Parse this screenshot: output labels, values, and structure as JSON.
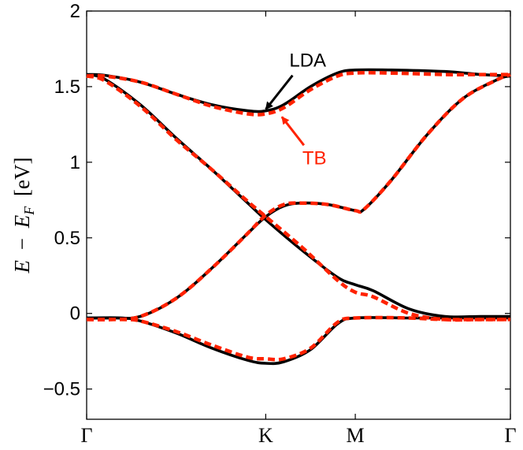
{
  "chart_data": {
    "type": "line",
    "ylabel": "E − E_F [eV]",
    "ylabel_parts": {
      "e": "E",
      "minus": "−",
      "ef": "E",
      "ef_sub": "F",
      "unit": "[eV]"
    },
    "xticks": [
      {
        "label": "Γ",
        "x": 0
      },
      {
        "label": "K",
        "x": 1
      },
      {
        "label": "M",
        "x": 1.5
      },
      {
        "label": "Γ",
        "x": 2.366
      }
    ],
    "xlim": [
      0,
      2.366
    ],
    "yticks": [
      "−0.5",
      "0",
      "0.5",
      "1",
      "1.5",
      "2"
    ],
    "ytick_values": [
      -0.5,
      0,
      0.5,
      1,
      1.5,
      2
    ],
    "ylim": [
      -0.7,
      2
    ],
    "colors": {
      "lda": "#000000",
      "tb": "#ff2200"
    },
    "annotations": [
      {
        "text": "LDA",
        "color": "#000000",
        "arrow_to": [
          1.0,
          1.35
        ]
      },
      {
        "text": "TB",
        "color": "#ff2200",
        "arrow_to": [
          1.09,
          1.3
        ]
      }
    ],
    "series": [
      {
        "name": "LDA",
        "style": "solid",
        "bands": [
          {
            "x": [
              0,
              0.1,
              0.3,
              0.5,
              0.7,
              0.9,
              1.0,
              1.1,
              1.25,
              1.4,
              1.5,
              1.7,
              2.0,
              2.2,
              2.366
            ],
            "y": [
              1.58,
              1.575,
              1.53,
              1.45,
              1.38,
              1.34,
              1.34,
              1.38,
              1.5,
              1.59,
              1.61,
              1.61,
              1.6,
              1.58,
              1.57
            ]
          },
          {
            "x": [
              0,
              0.1,
              0.3,
              0.5,
              0.7,
              0.9,
              1.0,
              1.2,
              1.4,
              1.5,
              1.6,
              1.8,
              2.0,
              2.2,
              2.366
            ],
            "y": [
              1.58,
              1.55,
              1.38,
              1.16,
              0.95,
              0.73,
              0.62,
              0.42,
              0.24,
              0.19,
              0.15,
              0.03,
              -0.02,
              -0.02,
              -0.02
            ]
          },
          {
            "x": [
              0,
              0.15,
              0.3,
              0.5,
              0.7,
              0.9,
              1.0,
              1.1,
              1.2,
              1.35,
              1.5,
              1.55,
              1.7,
              1.9,
              2.1,
              2.3,
              2.366
            ],
            "y": [
              -0.03,
              -0.03,
              -0.02,
              0.1,
              0.3,
              0.53,
              0.64,
              0.71,
              0.73,
              0.72,
              0.68,
              0.69,
              0.88,
              1.18,
              1.42,
              1.55,
              1.57
            ]
          },
          {
            "x": [
              0,
              0.2,
              0.3,
              0.5,
              0.7,
              0.9,
              1.0,
              1.1,
              1.25,
              1.4,
              1.5,
              1.8,
              2.0,
              2.366
            ],
            "y": [
              -0.03,
              -0.03,
              -0.05,
              -0.13,
              -0.23,
              -0.31,
              -0.33,
              -0.32,
              -0.24,
              -0.07,
              -0.03,
              -0.03,
              -0.03,
              -0.03
            ]
          }
        ]
      },
      {
        "name": "TB",
        "style": "dashed",
        "bands": [
          {
            "x": [
              0,
              0.1,
              0.3,
              0.5,
              0.7,
              0.9,
              1.0,
              1.1,
              1.25,
              1.4,
              1.5,
              1.7,
              2.0,
              2.2,
              2.366
            ],
            "y": [
              1.57,
              1.57,
              1.53,
              1.45,
              1.37,
              1.32,
              1.32,
              1.36,
              1.48,
              1.57,
              1.59,
              1.59,
              1.58,
              1.58,
              1.58
            ]
          },
          {
            "x": [
              0,
              0.1,
              0.3,
              0.5,
              0.7,
              0.9,
              1.0,
              1.2,
              1.4,
              1.5,
              1.6,
              1.8,
              2.0,
              2.2,
              2.366
            ],
            "y": [
              1.57,
              1.54,
              1.37,
              1.15,
              0.95,
              0.74,
              0.64,
              0.44,
              0.22,
              0.14,
              0.11,
              0.0,
              -0.04,
              -0.04,
              -0.04
            ]
          },
          {
            "x": [
              0,
              0.15,
              0.3,
              0.5,
              0.7,
              0.9,
              1.0,
              1.1,
              1.2,
              1.35,
              1.5,
              1.55,
              1.7,
              1.9,
              2.1,
              2.3,
              2.366
            ],
            "y": [
              -0.04,
              -0.04,
              -0.02,
              0.1,
              0.3,
              0.53,
              0.65,
              0.72,
              0.73,
              0.72,
              0.68,
              0.69,
              0.88,
              1.18,
              1.42,
              1.55,
              1.58
            ]
          },
          {
            "x": [
              0,
              0.2,
              0.3,
              0.5,
              0.7,
              0.9,
              1.0,
              1.1,
              1.25,
              1.4,
              1.5,
              1.8,
              2.0,
              2.366
            ],
            "y": [
              -0.04,
              -0.04,
              -0.05,
              -0.12,
              -0.21,
              -0.29,
              -0.3,
              -0.3,
              -0.23,
              -0.06,
              -0.03,
              -0.03,
              -0.04,
              -0.04
            ]
          }
        ]
      }
    ]
  }
}
